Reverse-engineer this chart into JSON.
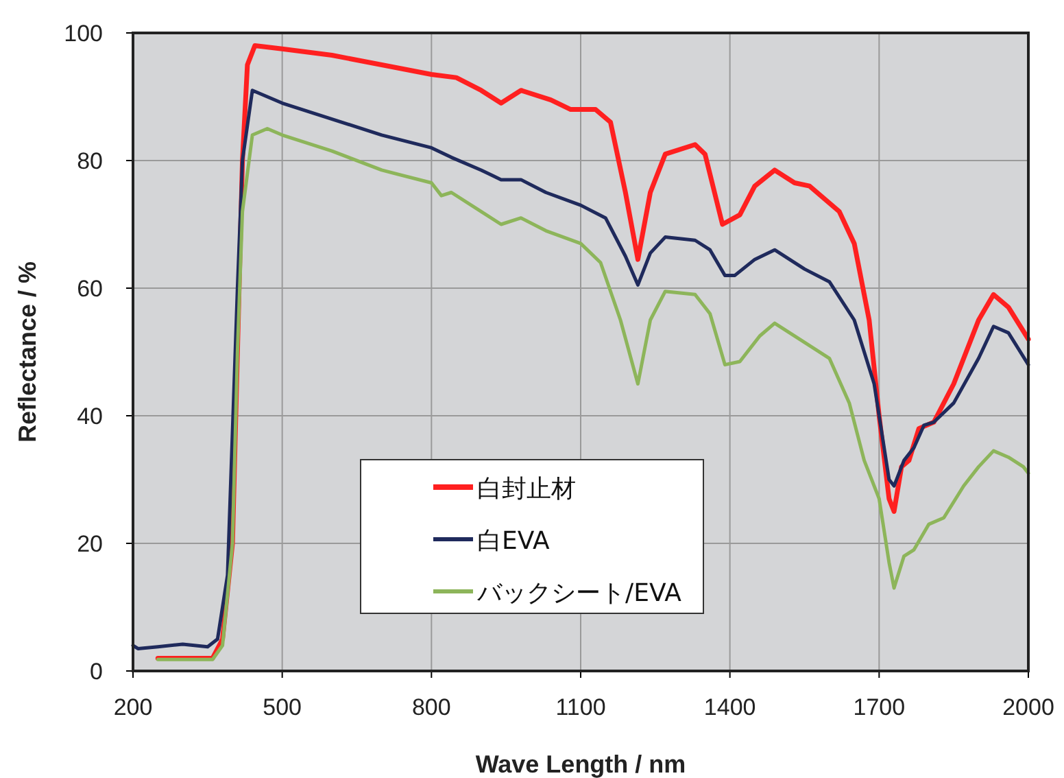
{
  "chart_data": {
    "type": "line",
    "xlabel": "Wave Length / nm",
    "ylabel": "Reflectance / %",
    "xlim": [
      200,
      2000
    ],
    "xticks": [
      200,
      500,
      800,
      1100,
      1400,
      1700,
      2000
    ],
    "ylim": [
      0,
      100
    ],
    "yticks": [
      0,
      20,
      40,
      60,
      80,
      100
    ],
    "grid": true,
    "legend": "bottom",
    "marker": "none",
    "line_style": "solid",
    "series": [
      {
        "name": "白封止材",
        "color": "#ff2020",
        "x": [
          250,
          360,
          380,
          400,
          410,
          420,
          430,
          445,
          500,
          600,
          700,
          800,
          850,
          900,
          940,
          980,
          1040,
          1080,
          1130,
          1160,
          1190,
          1215,
          1240,
          1270,
          1330,
          1350,
          1385,
          1420,
          1450,
          1490,
          1530,
          1560,
          1620,
          1650,
          1680,
          1700,
          1720,
          1730,
          1745,
          1760,
          1780,
          1810,
          1850,
          1900,
          1930,
          1960,
          2000
        ],
        "values": [
          2,
          2,
          5,
          20,
          50,
          80,
          95,
          98,
          97.5,
          96.5,
          95,
          93.5,
          93,
          91,
          89,
          91,
          89.5,
          88,
          88,
          86,
          75,
          64.5,
          75,
          81,
          82.5,
          81,
          70,
          71.5,
          76,
          78.5,
          76.5,
          76,
          72,
          67,
          55,
          40,
          27,
          25,
          32,
          33,
          38,
          39,
          45,
          55,
          59,
          57,
          52
        ]
      },
      {
        "name": "白EVA",
        "color": "#1f2a5c",
        "x": [
          200,
          210,
          250,
          300,
          350,
          370,
          390,
          410,
          420,
          440,
          500,
          600,
          700,
          800,
          840,
          900,
          940,
          980,
          1030,
          1100,
          1150,
          1190,
          1215,
          1240,
          1270,
          1330,
          1360,
          1390,
          1410,
          1450,
          1490,
          1550,
          1600,
          1650,
          1690,
          1720,
          1730,
          1750,
          1770,
          1790,
          1810,
          1850,
          1900,
          1930,
          1960,
          2000
        ],
        "values": [
          4,
          3.5,
          3.8,
          4.2,
          3.8,
          5,
          15,
          60,
          80,
          91,
          89,
          86.5,
          84,
          82,
          80.5,
          78.5,
          77,
          77,
          75,
          73,
          71,
          65,
          60.5,
          65.5,
          68,
          67.5,
          66,
          62,
          62,
          64.5,
          66,
          63,
          61,
          55,
          45,
          30,
          29,
          33,
          35,
          38.5,
          39,
          42,
          49,
          54,
          53,
          48
        ]
      },
      {
        "name": "バックシート/EVA",
        "color": "#8db55a",
        "x": [
          250,
          360,
          380,
          400,
          410,
          420,
          440,
          470,
          500,
          600,
          700,
          800,
          820,
          840,
          900,
          940,
          980,
          1030,
          1100,
          1140,
          1180,
          1215,
          1240,
          1270,
          1330,
          1360,
          1390,
          1420,
          1460,
          1490,
          1540,
          1600,
          1640,
          1670,
          1700,
          1720,
          1730,
          1750,
          1770,
          1800,
          1830,
          1870,
          1900,
          1930,
          1960,
          1990,
          2000
        ],
        "values": [
          1.8,
          1.8,
          4,
          20,
          50,
          72,
          84,
          85,
          84,
          81.5,
          78.5,
          76.5,
          74.5,
          75,
          72,
          70,
          71,
          69,
          67,
          64,
          55,
          45,
          55,
          59.5,
          59,
          56,
          48,
          48.5,
          52.5,
          54.5,
          52,
          49,
          42,
          33,
          27,
          17,
          13,
          18,
          19,
          23,
          24,
          29,
          32,
          34.5,
          33.5,
          32,
          31
        ]
      }
    ]
  }
}
